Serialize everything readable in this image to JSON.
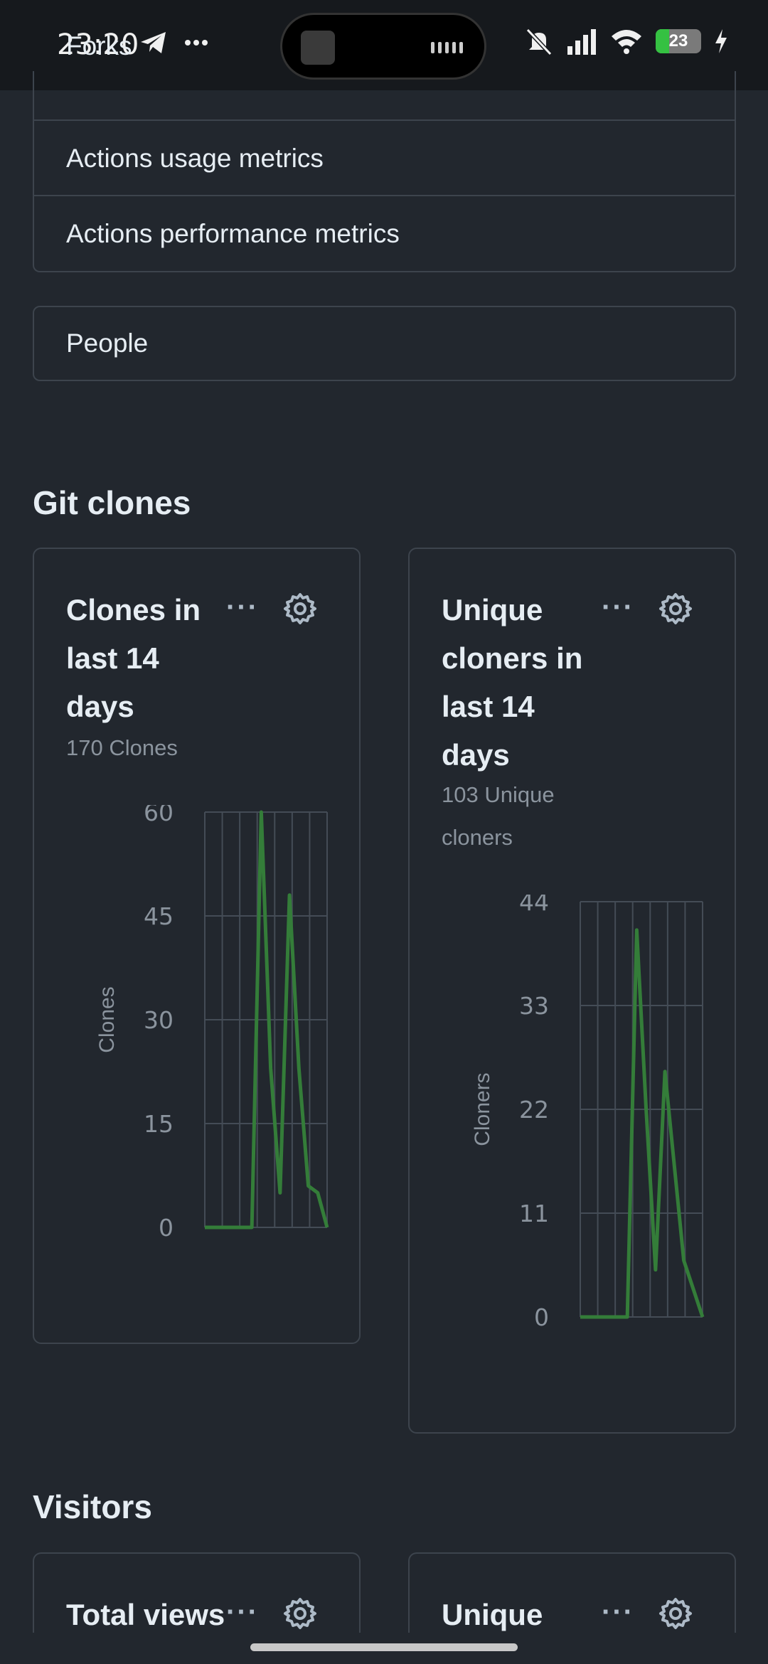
{
  "status_bar": {
    "time": "23:20",
    "battery_level": "23",
    "icons": [
      "telegram-icon",
      "more-icon",
      "mute-icon",
      "signal-icon",
      "wifi-icon",
      "battery-icon",
      "charging-icon"
    ]
  },
  "insights_list": {
    "partial_item": "Forks",
    "items": [
      "Actions usage metrics",
      "Actions performance metrics"
    ],
    "people": "People"
  },
  "git_clones": {
    "heading": "Git clones",
    "cards": [
      {
        "title": "Clones in last 14 days",
        "subtitle": "170 Clones",
        "menu": "···"
      },
      {
        "title": "Unique cloners in last 14 days",
        "subtitle": "103 Unique cloners",
        "menu": "···"
      }
    ]
  },
  "visitors": {
    "heading": "Visitors",
    "cards": [
      {
        "title": "Total views",
        "menu": "···"
      },
      {
        "title": "Unique",
        "menu": "···"
      }
    ]
  },
  "colors": {
    "line": "#347d39",
    "grid": "#444c56",
    "axis_text": "#8b949e"
  },
  "chart_data": [
    {
      "type": "line",
      "title": "Clones in last 14 days",
      "ylabel": "Clones",
      "ylim": [
        0,
        60
      ],
      "yticks": [
        0,
        15,
        30,
        45,
        60
      ],
      "x": [
        1,
        2,
        3,
        4,
        5,
        6,
        7,
        8,
        9,
        10,
        11,
        12,
        13,
        14
      ],
      "series": [
        {
          "values": [
            0,
            0,
            0,
            0,
            0,
            0,
            60,
            23,
            5,
            48,
            23,
            6,
            5,
            0
          ]
        }
      ]
    },
    {
      "type": "line",
      "title": "Unique cloners in last 14 days",
      "ylabel": "Cloners",
      "ylim": [
        0,
        44
      ],
      "yticks": [
        0,
        11,
        22,
        33,
        44
      ],
      "x": [
        1,
        2,
        3,
        4,
        5,
        6,
        7,
        8,
        9,
        10,
        11,
        12,
        13,
        14
      ],
      "series": [
        {
          "values": [
            0,
            0,
            0,
            0,
            0,
            0,
            41,
            22,
            5,
            26,
            16,
            6,
            3,
            0
          ]
        }
      ]
    }
  ]
}
